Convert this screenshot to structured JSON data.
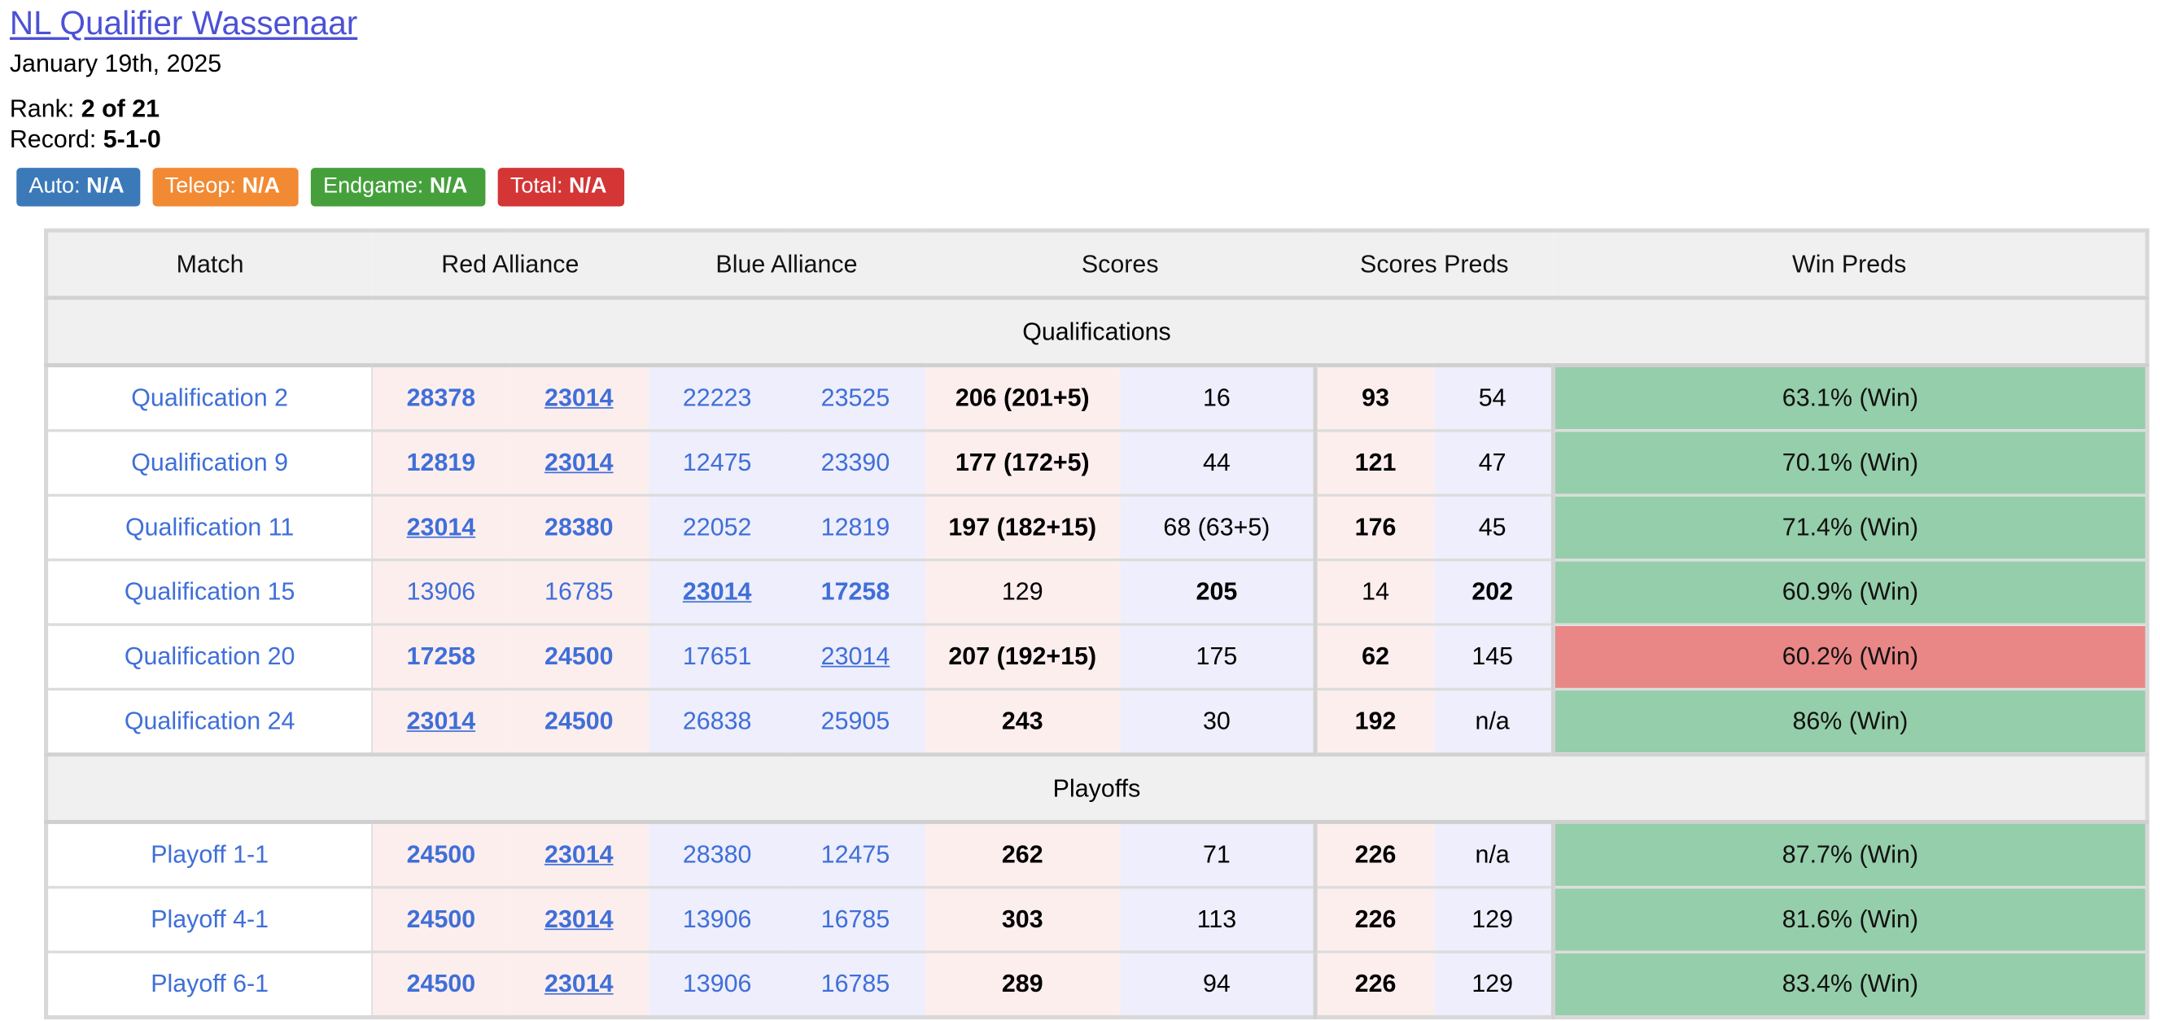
{
  "event": {
    "title": "NL Qualifier Wassenaar",
    "date": "January 19th, 2025",
    "rank_label": "Rank: ",
    "rank_value": "2 of 21",
    "record_label": "Record: ",
    "record_value": "5-1-0"
  },
  "badges": [
    {
      "label": "Auto: ",
      "value": "N/A",
      "color": "#3b79b9",
      "width": 90
    },
    {
      "label": "Teleop: ",
      "value": "N/A",
      "color": "#f28a33",
      "width": 106
    },
    {
      "label": "Endgame: ",
      "value": "N/A",
      "color": "#45a03c",
      "width": 127
    },
    {
      "label": "Total: ",
      "value": "N/A",
      "color": "#d43535",
      "width": 92
    }
  ],
  "columns": {
    "match": "Match",
    "red": "Red Alliance",
    "blue": "Blue Alliance",
    "scores": "Scores",
    "score_preds": "Scores Preds",
    "win_preds": "Win Preds"
  },
  "colors": {
    "win_green": "#95ceaa",
    "win_red": "#e98686",
    "red_tint": "#fdeeee",
    "blue_tint": "#eeeefc",
    "team_link": "#3f6fd8",
    "title_link": "#4c51d6"
  },
  "sections": [
    {
      "label": "Qualifications",
      "matches": [
        {
          "name": "Qualification 2",
          "red": [
            {
              "n": "28378",
              "b": true,
              "u": false
            },
            {
              "n": "23014",
              "b": true,
              "u": true
            }
          ],
          "blue": [
            {
              "n": "22223",
              "b": false,
              "u": false
            },
            {
              "n": "23525",
              "b": false,
              "u": false
            }
          ],
          "red_score": "206 (201+5)",
          "red_bold": true,
          "blue_score": "16",
          "blue_bold": false,
          "red_pred": "93",
          "red_pred_bold": true,
          "blue_pred": "54",
          "blue_pred_bold": false,
          "win": "63.1% (Win)",
          "win_color": "#95ceaa"
        },
        {
          "name": "Qualification 9",
          "red": [
            {
              "n": "12819",
              "b": true,
              "u": false
            },
            {
              "n": "23014",
              "b": true,
              "u": true
            }
          ],
          "blue": [
            {
              "n": "12475",
              "b": false,
              "u": false
            },
            {
              "n": "23390",
              "b": false,
              "u": false
            }
          ],
          "red_score": "177 (172+5)",
          "red_bold": true,
          "blue_score": "44",
          "blue_bold": false,
          "red_pred": "121",
          "red_pred_bold": true,
          "blue_pred": "47",
          "blue_pred_bold": false,
          "win": "70.1% (Win)",
          "win_color": "#95ceaa"
        },
        {
          "name": "Qualification 11",
          "red": [
            {
              "n": "23014",
              "b": true,
              "u": true
            },
            {
              "n": "28380",
              "b": true,
              "u": false
            }
          ],
          "blue": [
            {
              "n": "22052",
              "b": false,
              "u": false
            },
            {
              "n": "12819",
              "b": false,
              "u": false
            }
          ],
          "red_score": "197 (182+15)",
          "red_bold": true,
          "blue_score": "68 (63+5)",
          "blue_bold": false,
          "red_pred": "176",
          "red_pred_bold": true,
          "blue_pred": "45",
          "blue_pred_bold": false,
          "win": "71.4% (Win)",
          "win_color": "#95ceaa"
        },
        {
          "name": "Qualification 15",
          "red": [
            {
              "n": "13906",
              "b": false,
              "u": false
            },
            {
              "n": "16785",
              "b": false,
              "u": false
            }
          ],
          "blue": [
            {
              "n": "23014",
              "b": true,
              "u": true
            },
            {
              "n": "17258",
              "b": true,
              "u": false
            }
          ],
          "red_score": "129",
          "red_bold": false,
          "blue_score": "205",
          "blue_bold": true,
          "red_pred": "14",
          "red_pred_bold": false,
          "blue_pred": "202",
          "blue_pred_bold": true,
          "win": "60.9% (Win)",
          "win_color": "#95ceaa"
        },
        {
          "name": "Qualification 20",
          "red": [
            {
              "n": "17258",
              "b": true,
              "u": false
            },
            {
              "n": "24500",
              "b": true,
              "u": false
            }
          ],
          "blue": [
            {
              "n": "17651",
              "b": false,
              "u": false
            },
            {
              "n": "23014",
              "b": false,
              "u": true
            }
          ],
          "red_score": "207 (192+15)",
          "red_bold": true,
          "blue_score": "175",
          "blue_bold": false,
          "red_pred": "62",
          "red_pred_bold": true,
          "blue_pred": "145",
          "blue_pred_bold": false,
          "win": "60.2% (Win)",
          "win_color": "#e98686"
        },
        {
          "name": "Qualification 24",
          "red": [
            {
              "n": "23014",
              "b": true,
              "u": true
            },
            {
              "n": "24500",
              "b": true,
              "u": false
            }
          ],
          "blue": [
            {
              "n": "26838",
              "b": false,
              "u": false
            },
            {
              "n": "25905",
              "b": false,
              "u": false
            }
          ],
          "red_score": "243",
          "red_bold": true,
          "blue_score": "30",
          "blue_bold": false,
          "red_pred": "192",
          "red_pred_bold": true,
          "blue_pred": "n/a",
          "blue_pred_bold": false,
          "win": "86% (Win)",
          "win_color": "#95ceaa"
        }
      ]
    },
    {
      "label": "Playoffs",
      "matches": [
        {
          "name": "Playoff 1-1",
          "red": [
            {
              "n": "24500",
              "b": true,
              "u": false
            },
            {
              "n": "23014",
              "b": true,
              "u": true
            }
          ],
          "blue": [
            {
              "n": "28380",
              "b": false,
              "u": false
            },
            {
              "n": "12475",
              "b": false,
              "u": false
            }
          ],
          "red_score": "262",
          "red_bold": true,
          "blue_score": "71",
          "blue_bold": false,
          "red_pred": "226",
          "red_pred_bold": true,
          "blue_pred": "n/a",
          "blue_pred_bold": false,
          "win": "87.7% (Win)",
          "win_color": "#95ceaa"
        },
        {
          "name": "Playoff 4-1",
          "red": [
            {
              "n": "24500",
              "b": true,
              "u": false
            },
            {
              "n": "23014",
              "b": true,
              "u": true
            }
          ],
          "blue": [
            {
              "n": "13906",
              "b": false,
              "u": false
            },
            {
              "n": "16785",
              "b": false,
              "u": false
            }
          ],
          "red_score": "303",
          "red_bold": true,
          "blue_score": "113",
          "blue_bold": false,
          "red_pred": "226",
          "red_pred_bold": true,
          "blue_pred": "129",
          "blue_pred_bold": false,
          "win": "81.6% (Win)",
          "win_color": "#95ceaa"
        },
        {
          "name": "Playoff 6-1",
          "red": [
            {
              "n": "24500",
              "b": true,
              "u": false
            },
            {
              "n": "23014",
              "b": true,
              "u": true
            }
          ],
          "blue": [
            {
              "n": "13906",
              "b": false,
              "u": false
            },
            {
              "n": "16785",
              "b": false,
              "u": false
            }
          ],
          "red_score": "289",
          "red_bold": true,
          "blue_score": "94",
          "blue_bold": false,
          "red_pred": "226",
          "red_pred_bold": true,
          "blue_pred": "129",
          "blue_pred_bold": false,
          "win": "83.4% (Win)",
          "win_color": "#95ceaa"
        }
      ]
    }
  ]
}
